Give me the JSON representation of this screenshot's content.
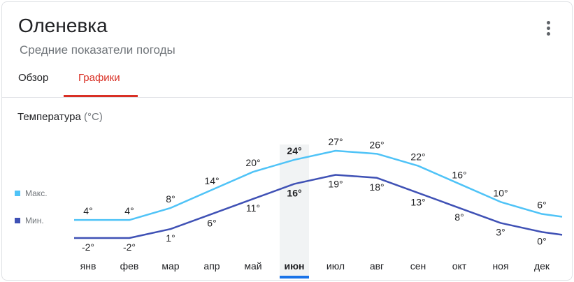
{
  "header": {
    "title": "Оленевка",
    "subtitle": "Средние показатели погоды",
    "more_icon": "more-vert-icon"
  },
  "tabs": [
    {
      "label": "Обзор",
      "active": false
    },
    {
      "label": "Графики",
      "active": true
    }
  ],
  "section": {
    "title": "Температура",
    "unit": "(°C)"
  },
  "legend": {
    "max_label": "Макс.",
    "min_label": "Мин."
  },
  "colors": {
    "max_line": "#4fc3f7",
    "min_line": "#3f51b5",
    "active_tab": "#d93025",
    "selected_bar": "#1a73e8",
    "selected_band": "#f1f3f4"
  },
  "chart_data": {
    "type": "line",
    "categories": [
      "янв",
      "фев",
      "мар",
      "апр",
      "май",
      "июн",
      "июл",
      "авг",
      "сен",
      "окт",
      "ноя",
      "дек"
    ],
    "series": [
      {
        "name": "Макс.",
        "values": [
          4,
          4,
          8,
          14,
          20,
          24,
          27,
          26,
          22,
          16,
          10,
          6
        ]
      },
      {
        "name": "Мин.",
        "values": [
          -2,
          -2,
          1,
          6,
          11,
          16,
          19,
          18,
          13,
          8,
          3,
          0
        ]
      }
    ],
    "max_labels": [
      "4°",
      "4°",
      "8°",
      "14°",
      "20°",
      "24°",
      "27°",
      "26°",
      "22°",
      "16°",
      "10°",
      "6°"
    ],
    "min_labels": [
      "-2°",
      "-2°",
      "1°",
      "6°",
      "11°",
      "16°",
      "19°",
      "18°",
      "13°",
      "8°",
      "3°",
      "0°"
    ],
    "selected_index": 5,
    "ylabel": "Температура (°C)",
    "ylim": [
      -2,
      27
    ],
    "grid": false
  }
}
